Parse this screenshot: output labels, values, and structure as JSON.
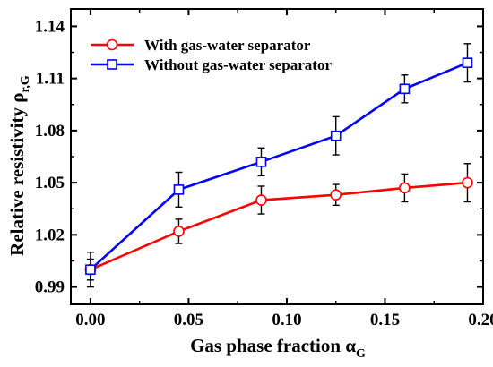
{
  "chart_data": {
    "type": "line",
    "xlabel": {
      "main": "Gas phase fraction α",
      "sub": "G"
    },
    "ylabel": {
      "main": "Relative resistivity ρ",
      "sub": "r,G"
    },
    "xlim": [
      -0.01,
      0.2
    ],
    "ylim": [
      0.98,
      1.15
    ],
    "x_ticks": [
      0.0,
      0.05,
      0.1,
      0.15,
      0.2
    ],
    "x_tick_labels": [
      "0.00",
      "0.05",
      "0.10",
      "0.15",
      "0.20"
    ],
    "y_ticks": [
      0.99,
      1.02,
      1.05,
      1.08,
      1.11,
      1.14
    ],
    "y_tick_labels": [
      "0.99",
      "1.02",
      "1.05",
      "1.08",
      "1.11",
      "1.14"
    ],
    "grid": false,
    "legend_position": "top-left",
    "series": [
      {
        "name": "With gas-water separator",
        "color": "#ff0000",
        "marker": "circle",
        "x": [
          0.0,
          0.045,
          0.087,
          0.125,
          0.16,
          0.192
        ],
        "y": [
          1.0,
          1.022,
          1.04,
          1.043,
          1.047,
          1.05
        ],
        "err": [
          0.01,
          0.007,
          0.008,
          0.006,
          0.008,
          0.011
        ]
      },
      {
        "name": "Without gas-water separator",
        "color": "#0000ff",
        "marker": "square",
        "x": [
          0.0,
          0.045,
          0.087,
          0.125,
          0.16,
          0.192
        ],
        "y": [
          1.0,
          1.046,
          1.062,
          1.077,
          1.104,
          1.119
        ],
        "err": [
          0.006,
          0.01,
          0.008,
          0.011,
          0.008,
          0.011
        ]
      }
    ]
  }
}
